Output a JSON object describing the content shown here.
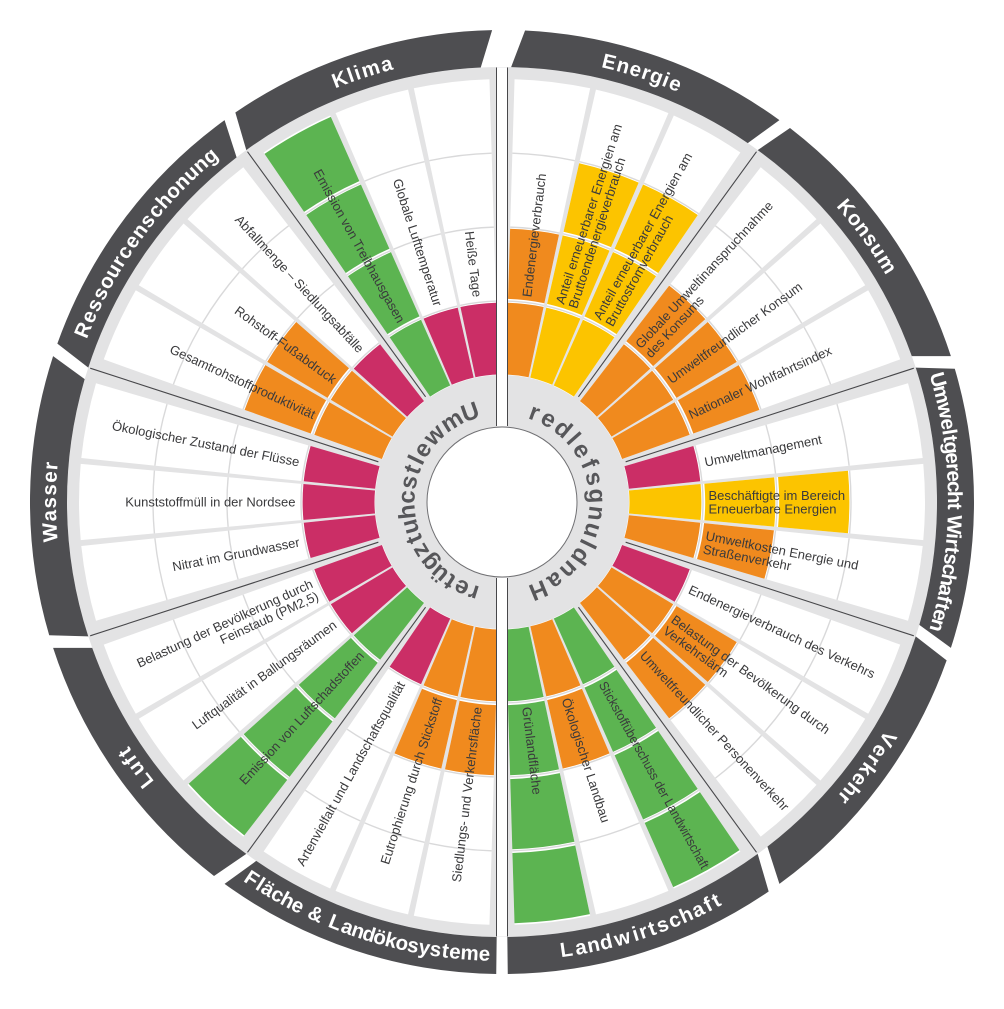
{
  "center": {
    "left_label": "Umweltschutzgüter",
    "right_label": "Handlungsfelder"
  },
  "legend_colors": {
    "green": "#5cb451",
    "yellow": "#fcc400",
    "orange": "#f08a1e",
    "pink": "#cb2e66"
  },
  "style": {
    "band": "#4e4e51",
    "band_text": "#ffffff",
    "plate": "#e3e3e4",
    "grid": "#d9d9da",
    "wedge": "#ffffff",
    "label_text": "#3a3a3c",
    "center_text": "#57575a",
    "divider_line": "#47474a",
    "circle_stroke": "#707073"
  },
  "chart_data": {
    "type": "bar",
    "layout": "radial-wheel",
    "rings_max": 4,
    "ring_note": "bar length = filled rings of 4",
    "halves": [
      {
        "name": "Umweltschutzgüter",
        "side": "left",
        "categories": [
          {
            "label": "Klima",
            "indicators": [
              {
                "label": [
                  "Heiße Tage"
                ],
                "color": "pink",
                "rings": 1
              },
              {
                "label": [
                  "Globale Lufttemperatur"
                ],
                "color": "pink",
                "rings": 1
              },
              {
                "label": [
                  "Emission von Treibhausgasen"
                ],
                "color": "green",
                "rings": 4
              }
            ]
          },
          {
            "label": "Ressourcenschonung",
            "indicators": [
              {
                "label": [
                  "Abfallmenge – Siedlungsabfälle"
                ],
                "color": "pink",
                "rings": 1
              },
              {
                "label": [
                  "Rohstoff-Fußabdruck"
                ],
                "color": "orange",
                "rings": 2
              },
              {
                "label": [
                  "Gesamtrohstoffproduktivität"
                ],
                "color": "orange",
                "rings": 2
              }
            ]
          },
          {
            "label": "Wasser",
            "indicators": [
              {
                "label": [
                  "Ökologischer Zustand der Flüsse"
                ],
                "color": "pink",
                "rings": 1
              },
              {
                "label": [
                  "Kunststoffmüll in der Nordsee"
                ],
                "color": "pink",
                "rings": 1
              },
              {
                "label": [
                  "Nitrat im Grundwasser"
                ],
                "color": "pink",
                "rings": 1
              }
            ]
          },
          {
            "label": "Luft",
            "indicators": [
              {
                "label": [
                  "Belastung der Bevölkerung durch",
                  "Feinstaub (PM2,5)"
                ],
                "color": "pink",
                "rings": 1
              },
              {
                "label": [
                  "Luftqualität in Ballungsräumen"
                ],
                "color": "pink",
                "rings": 1
              },
              {
                "label": [
                  "Emission von Luftschadstoffen"
                ],
                "color": "green",
                "rings": 4
              }
            ]
          },
          {
            "label": "Fläche & Landökosysteme",
            "indicators": [
              {
                "label": [
                  "Artenvielfalt und Landschaftsqualität"
                ],
                "color": "pink",
                "rings": 1
              },
              {
                "label": [
                  "Eutrophierung durch Stickstoff"
                ],
                "color": "orange",
                "rings": 2
              },
              {
                "label": [
                  "Siedlungs- und Verkehrsfläche"
                ],
                "color": "orange",
                "rings": 2
              }
            ]
          }
        ]
      },
      {
        "name": "Handlungsfelder",
        "side": "right",
        "categories": [
          {
            "label": "Energie",
            "indicators": [
              {
                "label": [
                  "Endenergieverbrauch"
                ],
                "color": "orange",
                "rings": 2
              },
              {
                "label": [
                  "Anteil erneuerbarer Energien am",
                  "Bruttoendenergieverbrauch"
                ],
                "color": "yellow",
                "rings": 3
              },
              {
                "label": [
                  "Anteil erneuerbarer Energien am",
                  "Bruttostromverbrauch"
                ],
                "color": "yellow",
                "rings": 3
              }
            ]
          },
          {
            "label": "Konsum",
            "indicators": [
              {
                "label": [
                  "Globale Umweltinanspruchnahme",
                  "des Konsums"
                ],
                "color": "orange",
                "rings": 2
              },
              {
                "label": [
                  "Umweltfreundlicher Konsum"
                ],
                "color": "orange",
                "rings": 2
              },
              {
                "label": [
                  "Nationaler Wohlfahrtsindex"
                ],
                "color": "orange",
                "rings": 2
              }
            ]
          },
          {
            "label": "Umweltgerecht Wirtschaften",
            "indicators": [
              {
                "label": [
                  "Umweltmanagement"
                ],
                "color": "pink",
                "rings": 1
              },
              {
                "label": [
                  "Beschäftigte im Bereich",
                  "Erneuerbare Energien"
                ],
                "color": "yellow",
                "rings": 3
              },
              {
                "label": [
                  "Umweltkosten Energie und",
                  "Straßenverkehr"
                ],
                "color": "orange",
                "rings": 2
              }
            ]
          },
          {
            "label": "Verkehr",
            "indicators": [
              {
                "label": [
                  "Endenergieverbrauch des Verkehrs"
                ],
                "color": "pink",
                "rings": 1
              },
              {
                "label": [
                  "Belastung der Bevölkerung durch",
                  "Verkehrslärm"
                ],
                "color": "orange",
                "rings": 2
              },
              {
                "label": [
                  "Umweltfreundlicher Personenverkehr"
                ],
                "color": "orange",
                "rings": 2
              }
            ]
          },
          {
            "label": "Landwirtschaft",
            "indicators": [
              {
                "label": [
                  "Stickstoffüberschuss der Landwirtschaft"
                ],
                "color": "green",
                "rings": 4
              },
              {
                "label": [
                  "Ökologischer Landbau"
                ],
                "color": "orange",
                "rings": 2
              },
              {
                "label": [
                  "Grünlandfläche"
                ],
                "color": "green",
                "rings": 4
              }
            ]
          }
        ]
      }
    ]
  }
}
